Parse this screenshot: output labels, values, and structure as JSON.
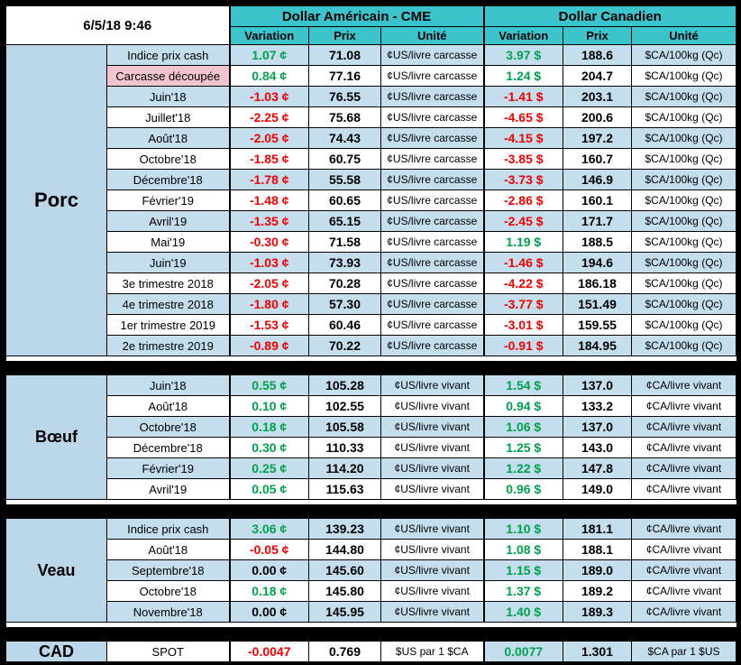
{
  "header": {
    "date": "6/5/18 9:46",
    "group_us": "Dollar Américain - CME",
    "group_ca": "Dollar Canadien",
    "col_variation": "Variation",
    "col_prix": "Prix",
    "col_unite": "Unité"
  },
  "colors": {
    "header-teal": "#3CC4CD",
    "row-blue": "#C4DEED",
    "section-blue": "#BCD6EA",
    "label-pink": "#F2C4CE",
    "cell-white": "#FFFFFF",
    "positive-green": "#00A24B",
    "negative-red": "#F40000"
  },
  "sections": [
    {
      "id": "porc",
      "name": "Porc",
      "large": true,
      "rows": [
        {
          "label": "Indice prix cash",
          "bg": "blue",
          "us_var": "1.07 ¢",
          "us_prix": "71.08",
          "us_unit": "¢US/livre carcasse",
          "ca_var": "3.97 $",
          "ca_prix": "188.6",
          "ca_unit": "$CA/100kg (Qc)"
        },
        {
          "label": "Carcasse découpée",
          "bg": "white",
          "label_bg": "pink",
          "us_var": "0.84 ¢",
          "us_prix": "77.16",
          "us_unit": "¢US/livre carcasse",
          "ca_var": "1.24 $",
          "ca_prix": "204.7",
          "ca_unit": "$CA/100kg (Qc)"
        },
        {
          "label": "Juin'18",
          "bg": "blue",
          "us_var": "-1.03 ¢",
          "us_prix": "76.55",
          "us_unit": "¢US/livre carcasse",
          "ca_var": "-1.41 $",
          "ca_prix": "203.1",
          "ca_unit": "$CA/100kg (Qc)"
        },
        {
          "label": "Juillet'18",
          "bg": "white",
          "us_var": "-2.25 ¢",
          "us_prix": "75.68",
          "us_unit": "¢US/livre carcasse",
          "ca_var": "-4.65 $",
          "ca_prix": "200.6",
          "ca_unit": "$CA/100kg (Qc)"
        },
        {
          "label": "Août'18",
          "bg": "blue",
          "us_var": "-2.05 ¢",
          "us_prix": "74.43",
          "us_unit": "¢US/livre carcasse",
          "ca_var": "-4.15 $",
          "ca_prix": "197.2",
          "ca_unit": "$CA/100kg (Qc)"
        },
        {
          "label": "Octobre'18",
          "bg": "white",
          "us_var": "-1.85 ¢",
          "us_prix": "60.75",
          "us_unit": "¢US/livre carcasse",
          "ca_var": "-3.85 $",
          "ca_prix": "160.7",
          "ca_unit": "$CA/100kg (Qc)"
        },
        {
          "label": "Décembre'18",
          "bg": "blue",
          "us_var": "-1.78 ¢",
          "us_prix": "55.58",
          "us_unit": "¢US/livre carcasse",
          "ca_var": "-3.73 $",
          "ca_prix": "146.9",
          "ca_unit": "$CA/100kg (Qc)"
        },
        {
          "label": "Février'19",
          "bg": "white",
          "us_var": "-1.48 ¢",
          "us_prix": "60.65",
          "us_unit": "¢US/livre carcasse",
          "ca_var": "-2.86 $",
          "ca_prix": "160.1",
          "ca_unit": "$CA/100kg (Qc)"
        },
        {
          "label": "Avril'19",
          "bg": "blue",
          "us_var": "-1.35 ¢",
          "us_prix": "65.15",
          "us_unit": "¢US/livre carcasse",
          "ca_var": "-2.45 $",
          "ca_prix": "171.7",
          "ca_unit": "$CA/100kg (Qc)"
        },
        {
          "label": "Mai'19",
          "bg": "white",
          "us_var": "-0.30 ¢",
          "us_prix": "71.58",
          "us_unit": "¢US/livre carcasse",
          "ca_var": "1.19 $",
          "ca_prix": "188.5",
          "ca_unit": "$CA/100kg (Qc)"
        },
        {
          "label": "Juin'19",
          "bg": "blue",
          "us_var": "-1.03 ¢",
          "us_prix": "73.93",
          "us_unit": "¢US/livre carcasse",
          "ca_var": "-1.46 $",
          "ca_prix": "194.6",
          "ca_unit": "$CA/100kg (Qc)"
        },
        {
          "label": "3e trimestre 2018",
          "bg": "white",
          "us_var": "-2.05 ¢",
          "us_prix": "70.28",
          "us_unit": "¢US/livre carcasse",
          "ca_var": "-4.22 $",
          "ca_prix": "186.18",
          "ca_unit": "$CA/100kg (Qc)"
        },
        {
          "label": "4e trimestre 2018",
          "bg": "blue",
          "us_var": "-1.80 ¢",
          "us_prix": "57.30",
          "us_unit": "¢US/livre carcasse",
          "ca_var": "-3.77 $",
          "ca_prix": "151.49",
          "ca_unit": "$CA/100kg (Qc)"
        },
        {
          "label": "1er trimestre 2019",
          "bg": "white",
          "us_var": "-1.53 ¢",
          "us_prix": "60.46",
          "us_unit": "¢US/livre carcasse",
          "ca_var": "-3.01 $",
          "ca_prix": "159.55",
          "ca_unit": "$CA/100kg (Qc)"
        },
        {
          "label": "2e trimestre 2019",
          "bg": "blue",
          "us_var": "-0.89 ¢",
          "us_prix": "70.22",
          "us_unit": "¢US/livre carcasse",
          "ca_var": "-0.91 $",
          "ca_prix": "184.95",
          "ca_unit": "$CA/100kg (Qc)"
        }
      ]
    },
    {
      "id": "boeuf",
      "name": "Bœuf",
      "large": false,
      "rows": [
        {
          "label": "Juin'18",
          "bg": "blue",
          "us_var": "0.55 ¢",
          "us_prix": "105.28",
          "us_unit": "¢US/livre vivant",
          "ca_var": "1.54 $",
          "ca_prix": "137.0",
          "ca_unit": "¢CA/livre vivant"
        },
        {
          "label": "Août'18",
          "bg": "white",
          "us_var": "0.10 ¢",
          "us_prix": "102.55",
          "us_unit": "¢US/livre vivant",
          "ca_var": "0.94 $",
          "ca_prix": "133.2",
          "ca_unit": "¢CA/livre vivant"
        },
        {
          "label": "Octobre'18",
          "bg": "blue",
          "us_var": "0.18 ¢",
          "us_prix": "105.58",
          "us_unit": "¢US/livre vivant",
          "ca_var": "1.06 $",
          "ca_prix": "137.0",
          "ca_unit": "¢CA/livre vivant"
        },
        {
          "label": "Décembre'18",
          "bg": "white",
          "us_var": "0.30 ¢",
          "us_prix": "110.33",
          "us_unit": "¢US/livre vivant",
          "ca_var": "1.25 $",
          "ca_prix": "143.0",
          "ca_unit": "¢CA/livre vivant"
        },
        {
          "label": "Février'19",
          "bg": "blue",
          "us_var": "0.25 ¢",
          "us_prix": "114.20",
          "us_unit": "¢US/livre vivant",
          "ca_var": "1.22 $",
          "ca_prix": "147.8",
          "ca_unit": "¢CA/livre vivant"
        },
        {
          "label": "Avril'19",
          "bg": "white",
          "us_var": "0.05 ¢",
          "us_prix": "115.63",
          "us_unit": "¢US/livre vivant",
          "ca_var": "0.96 $",
          "ca_prix": "149.0",
          "ca_unit": "¢CA/livre vivant"
        }
      ]
    },
    {
      "id": "veau",
      "name": "Veau",
      "large": false,
      "rows": [
        {
          "label": "Indice prix cash",
          "bg": "blue",
          "us_var": "3.06 ¢",
          "us_prix": "139.23",
          "us_unit": "¢US/livre vivant",
          "ca_var": "1.10 $",
          "ca_prix": "181.1",
          "ca_unit": "¢CA/livre vivant"
        },
        {
          "label": "Août'18",
          "bg": "white",
          "us_var": "-0.05 ¢",
          "us_prix": "144.80",
          "us_unit": "¢US/livre vivant",
          "ca_var": "1.08 $",
          "ca_prix": "188.1",
          "ca_unit": "¢CA/livre vivant"
        },
        {
          "label": "Septembre'18",
          "bg": "blue",
          "us_var": "0.00 ¢",
          "us_prix": "145.60",
          "us_unit": "¢US/livre vivant",
          "ca_var": "1.15 $",
          "ca_prix": "189.0",
          "ca_unit": "¢CA/livre vivant"
        },
        {
          "label": "Octobre'18",
          "bg": "white",
          "us_var": "0.18 ¢",
          "us_prix": "145.80",
          "us_unit": "¢US/livre vivant",
          "ca_var": "1.37 $",
          "ca_prix": "189.2",
          "ca_unit": "¢CA/livre vivant"
        },
        {
          "label": "Novembre'18",
          "bg": "blue",
          "us_var": "0.00 ¢",
          "us_prix": "145.95",
          "us_unit": "¢US/livre vivant",
          "ca_var": "1.40 $",
          "ca_prix": "189.3",
          "ca_unit": "¢CA/livre vivant"
        }
      ]
    },
    {
      "id": "cad",
      "name": "CAD",
      "large": false,
      "rows": [
        {
          "label": "SPOT",
          "bg": "white",
          "ca_bg": "blue",
          "us_var": "-0.0047",
          "us_prix": "0.769",
          "us_unit": "$US par 1 $CA",
          "ca_var": "0.0077",
          "ca_prix": "1.301",
          "ca_unit": "$CA par 1 $US"
        }
      ]
    }
  ]
}
